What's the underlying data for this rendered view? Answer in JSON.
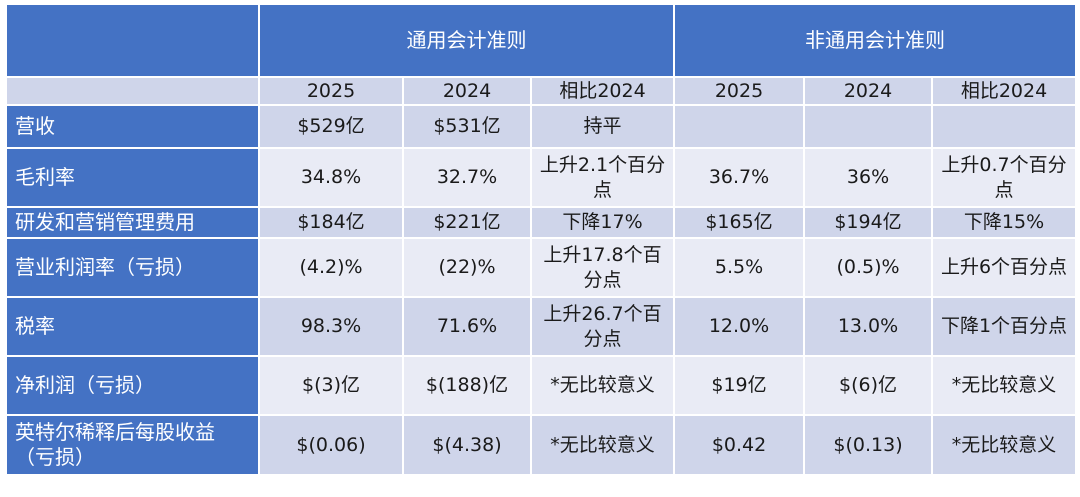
{
  "header": {
    "gaap": "通用会计准则",
    "non_gaap": "非通用会计准则"
  },
  "years": [
    "2025",
    "2024",
    "相比2024",
    "2025",
    "2024",
    "相比2024"
  ],
  "rows": [
    {
      "label": "营收",
      "cells": [
        "$529亿",
        "$531亿",
        "持平",
        "",
        "",
        ""
      ]
    },
    {
      "label": "毛利率",
      "cells": [
        "34.8%",
        "32.7%",
        "上升2.1个百分点",
        "36.7%",
        "36%",
        "上升0.7个百分点"
      ]
    },
    {
      "label": "研发和营销管理费用",
      "cells": [
        "$184亿",
        "$221亿",
        "下降17%",
        "$165亿",
        "$194亿",
        "下降15%"
      ]
    },
    {
      "label": "营业利润率（亏损）",
      "cells": [
        "(4.2)%",
        "(22)%",
        "上升17.8个百分点",
        "5.5%",
        "(0.5)%",
        "上升6个百分点"
      ]
    },
    {
      "label": "税率",
      "cells": [
        "98.3%",
        "71.6%",
        "上升26.7个百分点",
        "12.0%",
        "13.0%",
        "下降1个百分点"
      ]
    },
    {
      "label": "净利润（亏损）",
      "cells": [
        "$(3)亿",
        "$(188)亿",
        "*无比较意义",
        "$19亿",
        "$(6)亿",
        "*无比较意义"
      ]
    },
    {
      "label": "英特尔稀释后每股收益（亏损）",
      "cells": [
        "$(0.06)",
        "$(4.38)",
        "*无比较意义",
        "$0.42",
        "$(0.13)",
        "*无比较意义"
      ]
    }
  ]
}
